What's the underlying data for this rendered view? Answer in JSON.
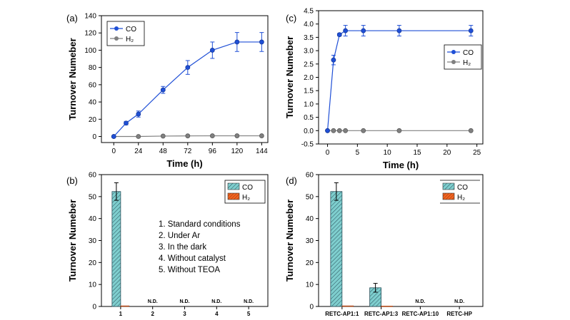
{
  "chart_data": [
    {
      "panel": "(a)",
      "type": "line",
      "xlabel": "Time (h)",
      "ylabel": "Turnover Numeber",
      "xlim": [
        -12,
        150
      ],
      "ylim": [
        -7,
        140
      ],
      "xticks": [
        0,
        24,
        48,
        72,
        96,
        120,
        144
      ],
      "yticks": [
        0,
        20,
        40,
        60,
        80,
        100,
        120,
        140
      ],
      "legend_position": "top-left",
      "series": [
        {
          "name": "CO",
          "color": "#1f4fd6",
          "x": [
            0,
            12,
            24,
            48,
            72,
            96,
            120,
            144
          ],
          "y": [
            0,
            15.5,
            26,
            54,
            80,
            100,
            109.5,
            109.5
          ],
          "err": [
            0,
            2,
            3.5,
            4,
            8,
            9.5,
            11,
            11
          ]
        },
        {
          "name": "H₂",
          "color": "#808080",
          "x": [
            0,
            24,
            48,
            72,
            96,
            120,
            144
          ],
          "y": [
            0,
            0,
            0.5,
            0.7,
            0.8,
            0.8,
            0.8
          ],
          "err": [
            0,
            0,
            0,
            0,
            0,
            0,
            0
          ]
        }
      ]
    },
    {
      "panel": "(c)",
      "type": "line",
      "xlabel": "Time (h)",
      "ylabel": "Turnover Numeber",
      "xlim": [
        -1.5,
        26
      ],
      "ylim": [
        -0.5,
        4.5
      ],
      "xticks": [
        0,
        5,
        10,
        15,
        20,
        25
      ],
      "yticks": [
        -0.5,
        0.0,
        0.5,
        1.0,
        1.5,
        2.0,
        2.5,
        3.0,
        3.5,
        4.0,
        4.5
      ],
      "legend_position": "right",
      "series": [
        {
          "name": "CO",
          "color": "#1f4fd6",
          "x": [
            0,
            1,
            2,
            3,
            6,
            12,
            24
          ],
          "y": [
            0,
            2.65,
            3.6,
            3.75,
            3.75,
            3.75,
            3.75
          ],
          "err": [
            0,
            0.18,
            0.05,
            0.2,
            0.2,
            0.2,
            0.2
          ]
        },
        {
          "name": "H₂",
          "color": "#808080",
          "x": [
            0,
            1,
            2,
            3,
            6,
            12,
            24
          ],
          "y": [
            0,
            0,
            0,
            0,
            0,
            0,
            0
          ],
          "err": [
            0,
            0,
            0,
            0,
            0,
            0,
            0
          ]
        }
      ]
    },
    {
      "panel": "(b)",
      "type": "bar",
      "xlabel": "",
      "ylabel": "Turnover Numeber",
      "ylim": [
        0,
        60
      ],
      "yticks": [
        0,
        10,
        20,
        30,
        40,
        50,
        60
      ],
      "categories": [
        "1",
        "2",
        "3",
        "4",
        "5"
      ],
      "legend_position": "top-right",
      "series": [
        {
          "name": "CO",
          "color": "#7ecece",
          "values": [
            52.3,
            0,
            0,
            0,
            0
          ],
          "err": [
            4,
            0,
            0,
            0,
            0
          ]
        },
        {
          "name": "H₂",
          "color": "#f26522",
          "values": [
            0.3,
            0,
            0,
            0,
            0
          ],
          "err": [
            0,
            0,
            0,
            0,
            0
          ]
        }
      ],
      "bar_labels": [
        "",
        "N.D.",
        "N.D.",
        "N.D.",
        "N.D."
      ],
      "annotations": [
        "1.   Standard conditions",
        "2.   Under Ar",
        "3.   In the dark",
        "4.   Without catalyst",
        "5.   Without TEOA"
      ]
    },
    {
      "panel": "(d)",
      "type": "bar",
      "xlabel": "",
      "ylabel": "Turnover Numeber",
      "ylim": [
        0,
        60
      ],
      "yticks": [
        0,
        10,
        20,
        30,
        40,
        50,
        60
      ],
      "categories": [
        "RETC-AP1:1",
        "RETC-AP1:3",
        "RETC-AP1:10",
        "RETC-HP"
      ],
      "legend_position": "top-right",
      "series": [
        {
          "name": "CO",
          "color": "#7ecece",
          "values": [
            52.3,
            8.5,
            0,
            0
          ],
          "err": [
            4,
            2,
            0,
            0
          ]
        },
        {
          "name": "H₂",
          "color": "#f26522",
          "values": [
            0.3,
            0.2,
            0,
            0
          ],
          "err": [
            0,
            0,
            0,
            0
          ]
        }
      ],
      "bar_labels": [
        "",
        "",
        "N.D.",
        "N.D."
      ]
    }
  ]
}
